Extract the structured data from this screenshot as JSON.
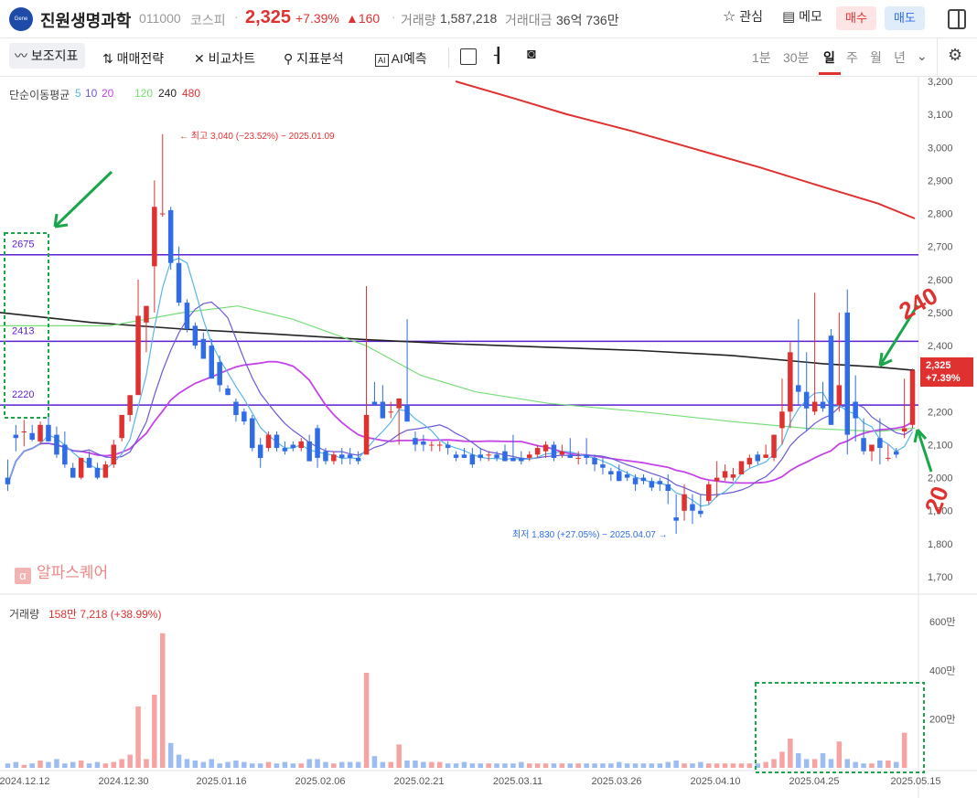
{
  "header": {
    "logo_text": "Gene",
    "name": "진원생명과학",
    "code": "011000",
    "market": "코스피",
    "price": "2,325",
    "change_pct": "+7.39%",
    "change_abs": "▲160",
    "volume_label": "거래량",
    "volume_value": "1,587,218",
    "amount_label": "거래대금",
    "amount_value": "36억 736만",
    "watch_label": "관심",
    "memo_label": "메모",
    "buy_label": "매수",
    "sell_label": "매도"
  },
  "toolbar": {
    "indicators": "보조지표",
    "strategy": "매매전략",
    "compare": "비교차트",
    "analysis": "지표분석",
    "ai": "AI예측",
    "timeframes": [
      "1분",
      "30분",
      "일",
      "주",
      "월",
      "년"
    ],
    "active_timeframe": "일"
  },
  "ma_legend": {
    "title": "단순이동평균",
    "periods": [
      "5",
      "10",
      "20",
      "120",
      "240",
      "480"
    ],
    "colors": [
      "#5bb5e8",
      "#6a5ad5",
      "#c444e8",
      "#77dd77",
      "#222222",
      "#e03131"
    ]
  },
  "watermark": "알파스퀘어",
  "price_tag": {
    "price": "2,325",
    "pct": "+7.39%"
  },
  "volume_legend": {
    "label": "거래량",
    "value": "158만 7,218 (+38.99%)"
  },
  "chart_data": {
    "type": "candlestick",
    "ylim": [
      1670,
      3220
    ],
    "y_ticks": [
      "3,200",
      "3,100",
      "3,000",
      "2,900",
      "2,800",
      "2,700",
      "2,600",
      "2,500",
      "2,400",
      "2,300",
      "2,200",
      "2,100",
      "2,000",
      "1,900",
      "1,800",
      "1,700"
    ],
    "x_ticks": [
      "2024.12.12",
      "2024.12.30",
      "2025.01.16",
      "2025.02.06",
      "2025.02.21",
      "2025.03.11",
      "2025.03.26",
      "2025.04.10",
      "2025.04.25",
      "2025.05.15"
    ],
    "vol_ticks": [
      "600만",
      "400만",
      "200만"
    ],
    "vol_ylim": [
      0,
      660
    ],
    "annotations": {
      "high": "← 최고 3,040 (−23.52%) − 2025.01.09",
      "low": "최저 1,830 (+27.05%) − 2025.04.07 →"
    },
    "hlines": [
      {
        "label": "2675",
        "value": 2675
      },
      {
        "label": "2413",
        "value": 2413
      },
      {
        "label": "2220",
        "value": 2220
      }
    ],
    "handwritten": [
      "240",
      "20"
    ],
    "candles": [
      [
        2000,
        2055,
        1980,
        1960
      ],
      [
        2130,
        2160,
        2120,
        2080
      ],
      [
        2140,
        2175,
        2140,
        2095
      ],
      [
        2135,
        2160,
        2115,
        2110
      ],
      [
        2110,
        2170,
        2160,
        2100
      ],
      [
        2160,
        2185,
        2110,
        2110
      ],
      [
        2130,
        2155,
        2070,
        2060
      ],
      [
        2100,
        2140,
        2040,
        2030
      ],
      [
        2030,
        2045,
        2000,
        2020
      ],
      [
        2000,
        2060,
        2060,
        1995
      ],
      [
        2060,
        2080,
        2030,
        2030
      ],
      [
        2030,
        2045,
        2000,
        1995
      ],
      [
        2000,
        2050,
        2040,
        2000
      ],
      [
        2040,
        2115,
        2100,
        2030
      ],
      [
        2120,
        2190,
        2190,
        2110
      ],
      [
        2190,
        2250,
        2250,
        2170
      ],
      [
        2250,
        2600,
        2490,
        2480
      ],
      [
        2470,
        2520,
        2520,
        2380
      ],
      [
        2640,
        2900,
        2820,
        2500
      ],
      [
        2800,
        3040,
        2800,
        2790
      ],
      [
        2810,
        2820,
        2650,
        2630
      ],
      [
        2650,
        2700,
        2530,
        2520
      ],
      [
        2530,
        2540,
        2450,
        2440
      ],
      [
        2460,
        2470,
        2400,
        2390
      ],
      [
        2420,
        2440,
        2360,
        2360
      ],
      [
        2400,
        2420,
        2300,
        2330
      ],
      [
        2350,
        2370,
        2280,
        2260
      ],
      [
        2270,
        2280,
        2250,
        2250
      ],
      [
        2230,
        2240,
        2190,
        2170
      ],
      [
        2200,
        2210,
        2170,
        2160
      ],
      [
        2180,
        2190,
        2090,
        2080
      ],
      [
        2100,
        2120,
        2060,
        2030
      ],
      [
        2090,
        2140,
        2130,
        2080
      ],
      [
        2130,
        2140,
        2090,
        2080
      ],
      [
        2090,
        2110,
        2080,
        2070
      ],
      [
        2100,
        2110,
        2090,
        2080
      ],
      [
        2090,
        2120,
        2110,
        2080
      ],
      [
        2110,
        2130,
        2050,
        2050
      ],
      [
        2150,
        2160,
        2060,
        2030
      ],
      [
        2080,
        2090,
        2050,
        2040
      ],
      [
        2050,
        2080,
        2070,
        2040
      ],
      [
        2070,
        2090,
        2060,
        2040
      ],
      [
        2070,
        2090,
        2060,
        2040
      ],
      [
        2060,
        2080,
        2050,
        2040
      ],
      [
        2070,
        2580,
        2190,
        2190
      ],
      [
        2230,
        2290,
        2220,
        2220
      ],
      [
        2230,
        2280,
        2180,
        2180
      ],
      [
        2200,
        2230,
        2200,
        2180
      ],
      [
        2210,
        2230,
        2240,
        2100
      ],
      [
        2220,
        2480,
        2170,
        2170
      ],
      [
        2120,
        2140,
        2100,
        2080
      ],
      [
        2110,
        2130,
        2100,
        2080
      ],
      [
        2100,
        2110,
        2100,
        2080
      ],
      [
        2100,
        2110,
        2100,
        2080
      ],
      [
        2100,
        2110,
        2090,
        2070
      ],
      [
        2070,
        2080,
        2060,
        2050
      ],
      [
        2070,
        2090,
        2060,
        2060
      ],
      [
        2070,
        2090,
        2040,
        2030
      ],
      [
        2070,
        2090,
        2060,
        2050
      ],
      [
        2070,
        2080,
        2070,
        2050
      ],
      [
        2070,
        2080,
        2060,
        2050
      ],
      [
        2080,
        2100,
        2050,
        2050
      ],
      [
        2060,
        2130,
        2050,
        2050
      ],
      [
        2060,
        2080,
        2050,
        2040
      ],
      [
        2060,
        2080,
        2070,
        2050
      ],
      [
        2070,
        2100,
        2090,
        2060
      ],
      [
        2080,
        2110,
        2100,
        2060
      ],
      [
        2100,
        2110,
        2060,
        2050
      ],
      [
        2070,
        2100,
        2080,
        2060
      ],
      [
        2070,
        2120,
        2060,
        2060
      ],
      [
        2060,
        2080,
        2060,
        2040
      ],
      [
        2070,
        2120,
        2060,
        2040
      ],
      [
        2060,
        2070,
        2040,
        2020
      ],
      [
        2040,
        2060,
        2030,
        2010
      ],
      [
        2020,
        2030,
        2010,
        1990
      ],
      [
        2020,
        2040,
        1990,
        1990
      ],
      [
        2010,
        2020,
        2000,
        1990
      ],
      [
        2000,
        2010,
        1980,
        1960
      ],
      [
        2000,
        2010,
        1990,
        1980
      ],
      [
        1990,
        2000,
        1970,
        1960
      ],
      [
        1990,
        2000,
        1980,
        1960
      ],
      [
        1980,
        2010,
        1960,
        1920
      ],
      [
        1880,
        1950,
        1870,
        1830
      ],
      [
        1900,
        1980,
        1950,
        1870
      ],
      [
        1920,
        1950,
        1900,
        1860
      ],
      [
        1900,
        1950,
        1890,
        1880
      ],
      [
        1930,
        1990,
        1980,
        1920
      ],
      [
        1990,
        2050,
        2000,
        1940
      ],
      [
        2000,
        2040,
        2020,
        1990
      ],
      [
        2000,
        2030,
        2010,
        1990
      ],
      [
        2010,
        2050,
        2050,
        2010
      ],
      [
        2040,
        2070,
        2060,
        2030
      ],
      [
        2070,
        2080,
        2050,
        2040
      ],
      [
        2060,
        2100,
        2070,
        2060
      ],
      [
        2060,
        2130,
        2130,
        2050
      ],
      [
        2150,
        2300,
        2200,
        2100
      ],
      [
        2200,
        2410,
        2380,
        2150
      ],
      [
        2280,
        2480,
        2260,
        2220
      ],
      [
        2260,
        2380,
        2210,
        2140
      ],
      [
        2200,
        2560,
        2230,
        2190
      ],
      [
        2230,
        2290,
        2210,
        2200
      ],
      [
        2430,
        2450,
        2160,
        2160
      ],
      [
        2220,
        2500,
        2280,
        2200
      ],
      [
        2500,
        2570,
        2130,
        2070
      ],
      [
        2230,
        2310,
        2180,
        2110
      ],
      [
        2120,
        2180,
        2080,
        2070
      ],
      [
        2080,
        2100,
        2100,
        2050
      ],
      [
        2120,
        2180,
        2090,
        2040
      ],
      [
        2060,
        2100,
        2060,
        2050
      ],
      [
        2080,
        2090,
        2070,
        2060
      ],
      [
        2140,
        2300,
        2150,
        2120
      ],
      [
        2160,
        2330,
        2325,
        2150
      ]
    ],
    "volume_pct": [
      3,
      4,
      2,
      3,
      5,
      4,
      6,
      3,
      4,
      5,
      3,
      4,
      3,
      4,
      6,
      9,
      42,
      6,
      50,
      92,
      17,
      9,
      6,
      5,
      4,
      6,
      3,
      4,
      5,
      4,
      3,
      3,
      4,
      3,
      4,
      3,
      3,
      6,
      6,
      4,
      3,
      4,
      4,
      4,
      65,
      8,
      4,
      4,
      16,
      5,
      5,
      4,
      4,
      4,
      3,
      3,
      4,
      3,
      3,
      3,
      3,
      3,
      3,
      4,
      3,
      3,
      3,
      3,
      3,
      3,
      3,
      3,
      3,
      3,
      3,
      4,
      3,
      3,
      3,
      3,
      3,
      4,
      5,
      3,
      3,
      4,
      3,
      3,
      3,
      3,
      3,
      3,
      3,
      4,
      6,
      11,
      20,
      10,
      6,
      6,
      10,
      6,
      18,
      6,
      4,
      3,
      3,
      5,
      5,
      4,
      24
    ]
  }
}
